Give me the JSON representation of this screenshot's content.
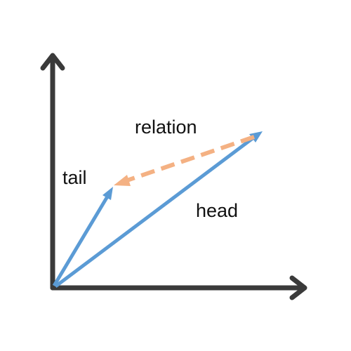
{
  "labels": {
    "tail": "tail",
    "relation": "relation",
    "head": "head"
  },
  "colors": {
    "axis": "#3a3a3a",
    "vector": "#5b9bd5",
    "relation": "#f4b183",
    "background": "#ffffff",
    "text": "#111111"
  }
}
